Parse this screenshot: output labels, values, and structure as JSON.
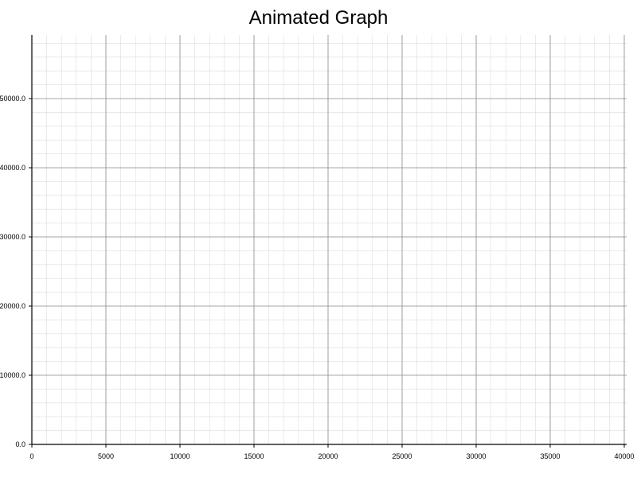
{
  "chart_data": {
    "type": "line",
    "title": "Animated Graph",
    "xlabel": "",
    "ylabel": "",
    "xlim": [
      0,
      40000
    ],
    "ylim": [
      0,
      50000
    ],
    "x_ticks": [
      0,
      5000,
      10000,
      15000,
      20000,
      25000,
      30000,
      35000,
      40000
    ],
    "x_tick_labels": [
      "0",
      "5000",
      "10000",
      "15000",
      "20000",
      "25000",
      "30000",
      "35000",
      "40000"
    ],
    "y_ticks": [
      0,
      10000,
      20000,
      30000,
      40000,
      50000
    ],
    "y_tick_labels": [
      "0.0",
      "10000.0",
      "20000.0",
      "30000.0",
      "40000.0",
      "50000.0"
    ],
    "grid": "major and minor",
    "series": [],
    "colors": {
      "major_grid": "#8c8c8c",
      "minor_grid": "#dcdcdc",
      "axis": "#000000"
    }
  }
}
